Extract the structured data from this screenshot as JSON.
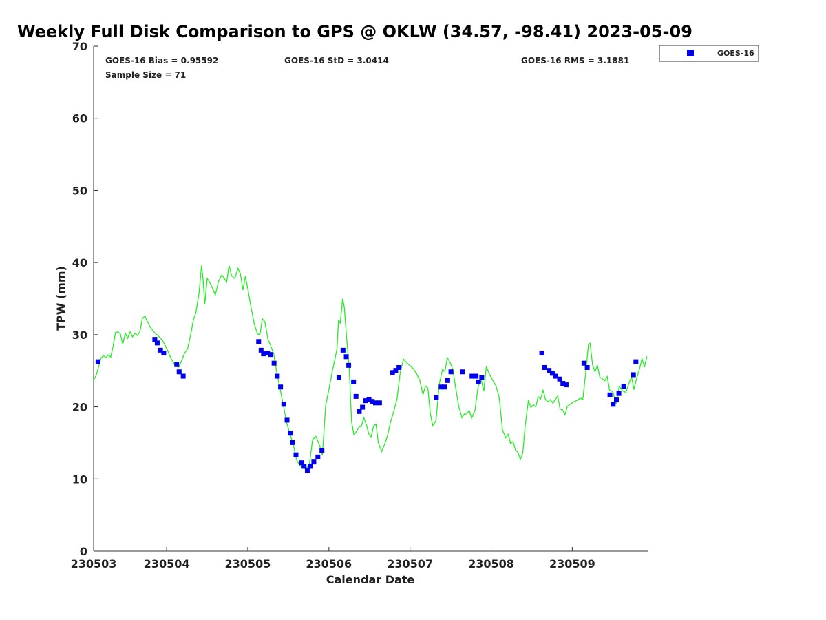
{
  "chart_data": {
    "type": "scatter",
    "title": "Weekly Full Disk Comparison to GPS @ OKLW (34.57, -98.41) 2023-05-09",
    "xlabel": "Calendar Date",
    "ylabel": "TPW (mm)",
    "xlim": [
      3.1,
      9.93
    ],
    "ylim": [
      0,
      70
    ],
    "x_tick_positions": [
      3,
      4,
      5,
      6,
      7,
      8,
      9
    ],
    "x_tick_labels": [
      "230503",
      "230504",
      "230505",
      "230506",
      "230507",
      "230508",
      "230509"
    ],
    "y_ticks": [
      0,
      10,
      20,
      30,
      40,
      50,
      60,
      70
    ],
    "grid": false,
    "legend_position": "top-right, outside plot",
    "stats": {
      "bias_label": "GOES-16 Bias = 0.95592",
      "std_label": "GOES-16 StD = 3.0414",
      "rms_label": "GOES-16 RMS = 3.1881",
      "sample_label": "Sample Size = 71"
    },
    "series": [
      {
        "name": "GOES-16",
        "type": "scatter",
        "marker": "square",
        "color": "#0000ee",
        "points": [
          [
            3.15,
            26.3
          ],
          [
            3.85,
            29.4
          ],
          [
            3.88,
            28.9
          ],
          [
            3.92,
            27.9
          ],
          [
            3.96,
            27.5
          ],
          [
            4.12,
            25.9
          ],
          [
            4.15,
            24.9
          ],
          [
            4.2,
            24.3
          ],
          [
            5.13,
            29.1
          ],
          [
            5.16,
            27.9
          ],
          [
            5.19,
            27.4
          ],
          [
            5.24,
            27.5
          ],
          [
            5.28,
            27.3
          ],
          [
            5.32,
            26.1
          ],
          [
            5.36,
            24.3
          ],
          [
            5.4,
            22.8
          ],
          [
            5.44,
            20.4
          ],
          [
            5.48,
            18.2
          ],
          [
            5.52,
            16.4
          ],
          [
            5.55,
            15.1
          ],
          [
            5.59,
            13.4
          ],
          [
            5.66,
            12.3
          ],
          [
            5.69,
            11.8
          ],
          [
            5.73,
            11.2
          ],
          [
            5.77,
            11.8
          ],
          [
            5.81,
            12.4
          ],
          [
            5.86,
            13.1
          ],
          [
            5.91,
            14.0
          ],
          [
            6.12,
            24.1
          ],
          [
            6.17,
            27.9
          ],
          [
            6.21,
            27.0
          ],
          [
            6.24,
            25.8
          ],
          [
            6.3,
            23.5
          ],
          [
            6.33,
            21.5
          ],
          [
            6.37,
            19.4
          ],
          [
            6.41,
            20.0
          ],
          [
            6.45,
            20.9
          ],
          [
            6.49,
            21.1
          ],
          [
            6.53,
            20.8
          ],
          [
            6.57,
            20.6
          ],
          [
            6.62,
            20.6
          ],
          [
            6.78,
            24.8
          ],
          [
            6.82,
            25.1
          ],
          [
            6.86,
            25.5
          ],
          [
            7.32,
            21.3
          ],
          [
            7.38,
            22.8
          ],
          [
            7.42,
            22.8
          ],
          [
            7.46,
            23.7
          ],
          [
            7.5,
            24.9
          ],
          [
            7.64,
            24.9
          ],
          [
            7.76,
            24.3
          ],
          [
            7.81,
            24.3
          ],
          [
            7.84,
            23.5
          ],
          [
            7.88,
            24.1
          ],
          [
            8.62,
            27.5
          ],
          [
            8.65,
            25.5
          ],
          [
            8.71,
            25.1
          ],
          [
            8.75,
            24.7
          ],
          [
            8.79,
            24.3
          ],
          [
            8.84,
            23.9
          ],
          [
            8.88,
            23.3
          ],
          [
            8.92,
            23.1
          ],
          [
            9.14,
            26.1
          ],
          [
            9.18,
            25.5
          ],
          [
            9.46,
            21.7
          ],
          [
            9.5,
            20.4
          ],
          [
            9.54,
            21.0
          ],
          [
            9.57,
            21.9
          ],
          [
            9.63,
            22.9
          ],
          [
            9.75,
            24.5
          ],
          [
            9.78,
            26.3
          ]
        ]
      },
      {
        "name": "GPS",
        "type": "line",
        "color": "#22ee22",
        "points": [
          [
            3.1,
            23.7
          ],
          [
            3.13,
            24.3
          ],
          [
            3.16,
            25.5
          ],
          [
            3.19,
            26.7
          ],
          [
            3.22,
            27.1
          ],
          [
            3.25,
            26.8
          ],
          [
            3.28,
            27.2
          ],
          [
            3.31,
            26.9
          ],
          [
            3.34,
            28.4
          ],
          [
            3.37,
            30.3
          ],
          [
            3.4,
            30.4
          ],
          [
            3.43,
            30.1
          ],
          [
            3.46,
            28.7
          ],
          [
            3.49,
            30.2
          ],
          [
            3.52,
            29.5
          ],
          [
            3.55,
            30.4
          ],
          [
            3.58,
            29.7
          ],
          [
            3.61,
            30.2
          ],
          [
            3.64,
            29.9
          ],
          [
            3.67,
            30.4
          ],
          [
            3.7,
            32.2
          ],
          [
            3.73,
            32.6
          ],
          [
            3.76,
            31.9
          ],
          [
            3.8,
            31.0
          ],
          [
            3.85,
            30.3
          ],
          [
            3.9,
            29.8
          ],
          [
            3.95,
            29.2
          ],
          [
            4.0,
            28.1
          ],
          [
            4.05,
            26.8
          ],
          [
            4.1,
            25.8
          ],
          [
            4.15,
            25.5
          ],
          [
            4.18,
            26.3
          ],
          [
            4.22,
            27.4
          ],
          [
            4.26,
            28.1
          ],
          [
            4.3,
            30.2
          ],
          [
            4.33,
            32.1
          ],
          [
            4.36,
            33.0
          ],
          [
            4.4,
            35.8
          ],
          [
            4.43,
            39.6
          ],
          [
            4.45,
            37.6
          ],
          [
            4.47,
            34.2
          ],
          [
            4.5,
            37.8
          ],
          [
            4.53,
            37.3
          ],
          [
            4.56,
            36.6
          ],
          [
            4.6,
            35.5
          ],
          [
            4.64,
            37.4
          ],
          [
            4.68,
            38.3
          ],
          [
            4.71,
            37.8
          ],
          [
            4.74,
            37.3
          ],
          [
            4.77,
            39.6
          ],
          [
            4.8,
            38.2
          ],
          [
            4.84,
            37.8
          ],
          [
            4.88,
            39.2
          ],
          [
            4.91,
            38.4
          ],
          [
            4.94,
            36.2
          ],
          [
            4.97,
            38.1
          ],
          [
            5.0,
            36.4
          ],
          [
            5.04,
            33.8
          ],
          [
            5.08,
            31.5
          ],
          [
            5.12,
            30.1
          ],
          [
            5.15,
            30.0
          ],
          [
            5.18,
            32.2
          ],
          [
            5.21,
            31.8
          ],
          [
            5.25,
            29.3
          ],
          [
            5.28,
            28.6
          ],
          [
            5.32,
            27.3
          ],
          [
            5.36,
            24.6
          ],
          [
            5.4,
            22.4
          ],
          [
            5.44,
            20.1
          ],
          [
            5.48,
            17.8
          ],
          [
            5.52,
            16.2
          ],
          [
            5.56,
            14.9
          ],
          [
            5.6,
            12.7
          ],
          [
            5.64,
            11.9
          ],
          [
            5.68,
            11.5
          ],
          [
            5.72,
            11.4
          ],
          [
            5.76,
            12.1
          ],
          [
            5.8,
            15.5
          ],
          [
            5.84,
            15.9
          ],
          [
            5.88,
            14.8
          ],
          [
            5.92,
            13.3
          ],
          [
            5.96,
            20.2
          ],
          [
            6.0,
            22.4
          ],
          [
            6.04,
            24.8
          ],
          [
            6.08,
            26.9
          ],
          [
            6.1,
            28.1
          ],
          [
            6.12,
            32.1
          ],
          [
            6.14,
            31.6
          ],
          [
            6.17,
            35.0
          ],
          [
            6.19,
            33.8
          ],
          [
            6.22,
            29.4
          ],
          [
            6.25,
            25.4
          ],
          [
            6.28,
            17.9
          ],
          [
            6.31,
            16.1
          ],
          [
            6.34,
            16.6
          ],
          [
            6.37,
            17.2
          ],
          [
            6.4,
            17.3
          ],
          [
            6.43,
            18.5
          ],
          [
            6.46,
            17.6
          ],
          [
            6.49,
            16.3
          ],
          [
            6.52,
            15.8
          ],
          [
            6.55,
            17.3
          ],
          [
            6.58,
            17.6
          ],
          [
            6.61,
            15.0
          ],
          [
            6.65,
            13.8
          ],
          [
            6.68,
            14.6
          ],
          [
            6.72,
            15.9
          ],
          [
            6.76,
            17.9
          ],
          [
            6.8,
            19.4
          ],
          [
            6.84,
            21.1
          ],
          [
            6.88,
            24.8
          ],
          [
            6.92,
            26.6
          ],
          [
            6.96,
            26.1
          ],
          [
            7.0,
            25.7
          ],
          [
            7.04,
            25.3
          ],
          [
            7.08,
            24.6
          ],
          [
            7.12,
            23.7
          ],
          [
            7.16,
            21.7
          ],
          [
            7.19,
            22.9
          ],
          [
            7.22,
            22.6
          ],
          [
            7.25,
            19.1
          ],
          [
            7.28,
            17.4
          ],
          [
            7.32,
            18.1
          ],
          [
            7.36,
            23.1
          ],
          [
            7.4,
            25.2
          ],
          [
            7.43,
            24.9
          ],
          [
            7.46,
            26.8
          ],
          [
            7.5,
            26.0
          ],
          [
            7.53,
            25.1
          ],
          [
            7.56,
            22.8
          ],
          [
            7.6,
            20.1
          ],
          [
            7.64,
            18.5
          ],
          [
            7.67,
            19.0
          ],
          [
            7.7,
            19.0
          ],
          [
            7.73,
            19.5
          ],
          [
            7.76,
            18.4
          ],
          [
            7.8,
            19.5
          ],
          [
            7.84,
            22.9
          ],
          [
            7.88,
            23.6
          ],
          [
            7.91,
            22.2
          ],
          [
            7.94,
            25.6
          ],
          [
            7.98,
            24.5
          ],
          [
            8.02,
            23.7
          ],
          [
            8.06,
            22.9
          ],
          [
            8.1,
            21.3
          ],
          [
            8.14,
            16.8
          ],
          [
            8.18,
            15.7
          ],
          [
            8.21,
            16.2
          ],
          [
            8.24,
            14.9
          ],
          [
            8.27,
            15.2
          ],
          [
            8.3,
            14.0
          ],
          [
            8.33,
            13.7
          ],
          [
            8.36,
            12.7
          ],
          [
            8.39,
            13.6
          ],
          [
            8.42,
            17.4
          ],
          [
            8.46,
            20.9
          ],
          [
            8.49,
            19.9
          ],
          [
            8.52,
            20.3
          ],
          [
            8.55,
            20.0
          ],
          [
            8.58,
            21.4
          ],
          [
            8.61,
            21.1
          ],
          [
            8.64,
            22.3
          ],
          [
            8.67,
            21.0
          ],
          [
            8.7,
            20.7
          ],
          [
            8.73,
            21.0
          ],
          [
            8.76,
            20.5
          ],
          [
            8.79,
            21.0
          ],
          [
            8.82,
            21.5
          ],
          [
            8.85,
            19.7
          ],
          [
            8.88,
            19.6
          ],
          [
            8.91,
            18.9
          ],
          [
            8.94,
            20.1
          ],
          [
            8.98,
            20.4
          ],
          [
            9.02,
            20.7
          ],
          [
            9.06,
            20.9
          ],
          [
            9.1,
            21.2
          ],
          [
            9.13,
            21.0
          ],
          [
            9.16,
            24.1
          ],
          [
            9.2,
            28.7
          ],
          [
            9.22,
            28.8
          ],
          [
            9.25,
            25.8
          ],
          [
            9.28,
            24.9
          ],
          [
            9.31,
            25.7
          ],
          [
            9.34,
            24.1
          ],
          [
            9.37,
            23.9
          ],
          [
            9.4,
            23.6
          ],
          [
            9.43,
            24.2
          ],
          [
            9.46,
            22.3
          ],
          [
            9.5,
            22.1
          ],
          [
            9.54,
            20.4
          ],
          [
            9.58,
            22.9
          ],
          [
            9.62,
            22.2
          ],
          [
            9.66,
            22.0
          ],
          [
            9.7,
            23.3
          ],
          [
            9.73,
            24.2
          ],
          [
            9.76,
            22.4
          ],
          [
            9.79,
            23.8
          ],
          [
            9.83,
            25.3
          ],
          [
            9.86,
            26.7
          ],
          [
            9.89,
            25.5
          ],
          [
            9.92,
            27.0
          ]
        ]
      }
    ]
  }
}
